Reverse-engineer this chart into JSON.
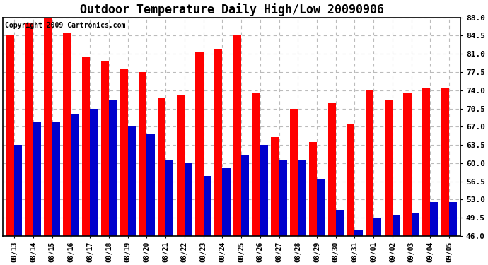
{
  "title": "Outdoor Temperature Daily High/Low 20090906",
  "copyright": "Copyright 2009 Cartronics.com",
  "dates": [
    "08/13",
    "08/14",
    "08/15",
    "08/16",
    "08/17",
    "08/18",
    "08/19",
    "08/20",
    "08/21",
    "08/22",
    "08/23",
    "08/24",
    "08/25",
    "08/26",
    "08/27",
    "08/28",
    "08/29",
    "08/30",
    "08/31",
    "09/01",
    "09/02",
    "09/03",
    "09/04",
    "09/05"
  ],
  "highs": [
    84.5,
    87.0,
    88.0,
    85.0,
    80.5,
    79.5,
    78.0,
    77.5,
    72.5,
    73.0,
    81.5,
    82.0,
    84.5,
    73.5,
    65.0,
    70.5,
    64.0,
    71.5,
    67.5,
    74.0,
    72.0,
    73.5,
    74.5,
    74.5
  ],
  "lows": [
    63.5,
    68.0,
    68.0,
    69.5,
    70.5,
    72.0,
    67.0,
    65.5,
    60.5,
    60.0,
    57.5,
    59.0,
    61.5,
    63.5,
    60.5,
    60.5,
    57.0,
    51.0,
    47.0,
    49.5,
    50.0,
    50.5,
    52.5,
    52.5
  ],
  "high_color": "#ff0000",
  "low_color": "#0000cc",
  "background_color": "#ffffff",
  "ylim": [
    46.0,
    88.0
  ],
  "yticks": [
    46.0,
    49.5,
    53.0,
    56.5,
    60.0,
    63.5,
    67.0,
    70.5,
    74.0,
    77.5,
    81.0,
    84.5,
    88.0
  ],
  "grid_color": "#bbbbbb",
  "title_fontsize": 12,
  "copyright_fontsize": 7,
  "bar_width": 0.42
}
